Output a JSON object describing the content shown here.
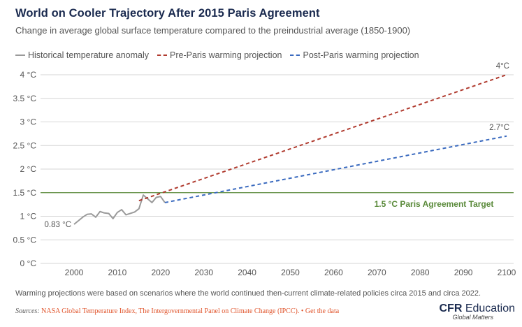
{
  "header": {
    "title": "World on Cooler Trajectory After 2015 Paris Agreement",
    "subtitle": "Change in average global surface temperature compared to the preindustrial average (1850-1900)"
  },
  "legend": [
    {
      "label": "Historical temperature anomaly",
      "style": "solid",
      "color": "#9a9a9a"
    },
    {
      "label": "Pre-Paris warming projection",
      "style": "dashed",
      "color": "#b03a2e"
    },
    {
      "label": "Post-Paris warming projection",
      "style": "dashed",
      "color": "#3a6abf"
    }
  ],
  "chart_data": {
    "type": "line",
    "title": "World on Cooler Trajectory After 2015 Paris Agreement",
    "xlabel": "",
    "ylabel": "",
    "xlim": [
      1995,
      2101
    ],
    "ylim": [
      0,
      4
    ],
    "x_ticks": [
      2000,
      2010,
      2020,
      2030,
      2040,
      2050,
      2060,
      2070,
      2080,
      2090,
      2100
    ],
    "y_ticks": [
      0,
      0.5,
      1,
      1.5,
      2,
      2.5,
      3,
      3.5,
      4
    ],
    "y_tick_labels": [
      "0 °C",
      "0.5 °C",
      "1 °C",
      "1.5 °C",
      "2 °C",
      "2.5 °C",
      "3 °C",
      "3.5 °C",
      "4 °C"
    ],
    "grid": true,
    "legend_position": "top-left",
    "series": [
      {
        "name": "Historical temperature anomaly",
        "color": "#9a9a9a",
        "style": "solid",
        "x": [
          2000,
          2002,
          2003,
          2004,
          2005,
          2006,
          2007,
          2008,
          2009,
          2010,
          2011,
          2012,
          2013,
          2014,
          2015,
          2016,
          2017,
          2018,
          2019,
          2020,
          2021
        ],
        "y": [
          0.83,
          0.98,
          1.04,
          1.05,
          0.98,
          1.1,
          1.07,
          1.06,
          0.95,
          1.08,
          1.14,
          1.03,
          1.06,
          1.09,
          1.16,
          1.45,
          1.37,
          1.29,
          1.4,
          1.42,
          1.29
        ]
      },
      {
        "name": "Pre-Paris warming projection",
        "color": "#b03a2e",
        "style": "dashed",
        "x": [
          2015,
          2100
        ],
        "y": [
          1.33,
          4.0
        ]
      },
      {
        "name": "Post-Paris warming projection",
        "color": "#3a6abf",
        "style": "dashed",
        "x": [
          2021,
          2100
        ],
        "y": [
          1.29,
          2.7
        ]
      }
    ],
    "reference_line": {
      "y": 1.5,
      "color": "#5a8a3a",
      "label": "1.5 °C Paris Agreement Target"
    },
    "annotations": [
      {
        "text": "0.83 °C",
        "x": 2000,
        "y": 0.83,
        "anchor": "start-label"
      },
      {
        "text": "4°C",
        "x": 2100,
        "y": 4.0,
        "anchor": "end-label"
      },
      {
        "text": "2.7°C",
        "x": 2100,
        "y": 2.7,
        "anchor": "end-label"
      }
    ]
  },
  "footer": {
    "note": "Warming projections were based on scenarios where the world continued then-current climate-related policies circa 2015 and circa 2022.",
    "sources_label": "Sources:",
    "sources_text": "NASA Global Temperature Index, The Intergovernmental Panel on Climate Change (IPCC).",
    "get_data_link": "• Get the data",
    "logo_bold": "CFR",
    "logo_rest": " Education",
    "logo_tagline": "Global Matters"
  }
}
